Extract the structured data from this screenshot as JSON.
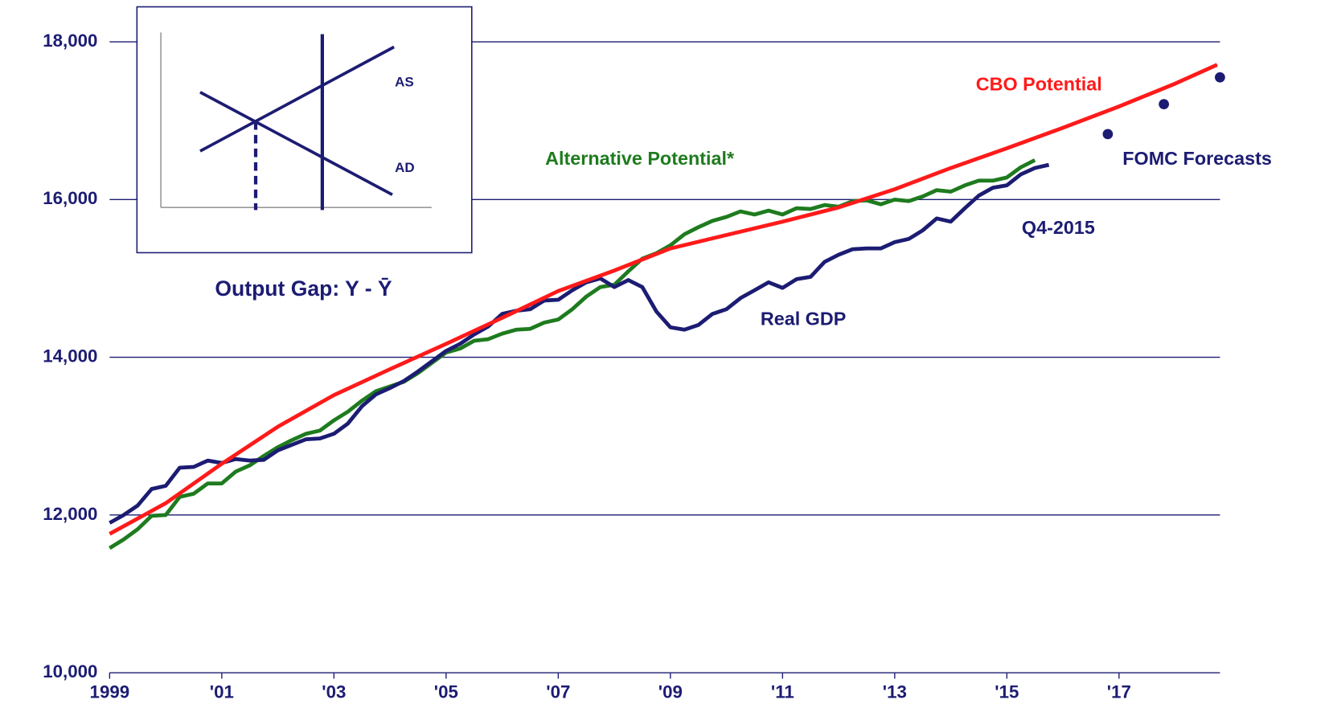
{
  "chart_data": {
    "type": "line",
    "xlim": [
      1999,
      2018.8
    ],
    "ylim": [
      10000,
      18000
    ],
    "xticks": [
      1999,
      {
        "value": 2001,
        "label": "'01"
      },
      {
        "value": 2003,
        "label": "'03"
      },
      {
        "value": 2005,
        "label": "'05"
      },
      {
        "value": 2007,
        "label": "'07"
      },
      {
        "value": 2009,
        "label": "'09"
      },
      {
        "value": 2011,
        "label": "'11"
      },
      {
        "value": 2013,
        "label": "'13"
      },
      {
        "value": 2015,
        "label": "'15"
      },
      {
        "value": 2017,
        "label": "'17"
      }
    ],
    "yticks": [
      {
        "value": 10000,
        "label": "10,000"
      },
      {
        "value": 12000,
        "label": "12,000"
      },
      {
        "value": 14000,
        "label": "14,000"
      },
      {
        "value": 16000,
        "label": "16,000"
      },
      {
        "value": 18000,
        "label": "18,000"
      }
    ],
    "grid": true,
    "annotations": [
      "Q4-2015"
    ],
    "inset": {
      "title": "Output Gap:  Y - Ȳ",
      "labels": [
        "AS",
        "AD"
      ]
    },
    "series": [
      {
        "name": "Real GDP",
        "type": "line",
        "color": "#1c1c73",
        "x": [
          1999,
          1999.25,
          1999.5,
          1999.75,
          2000,
          2000.25,
          2000.5,
          2000.75,
          2001,
          2001.25,
          2001.5,
          2001.75,
          2002,
          2002.25,
          2002.5,
          2002.75,
          2003,
          2003.25,
          2003.5,
          2003.75,
          2004,
          2004.25,
          2004.5,
          2004.75,
          2005,
          2005.25,
          2005.5,
          2005.75,
          2006,
          2006.25,
          2006.5,
          2006.75,
          2007,
          2007.25,
          2007.5,
          2007.75,
          2008,
          2008.25,
          2008.5,
          2008.75,
          2009,
          2009.25,
          2009.5,
          2009.75,
          2010,
          2010.25,
          2010.5,
          2010.75,
          2011,
          2011.25,
          2011.5,
          2011.75,
          2012,
          2012.25,
          2012.5,
          2012.75,
          2013,
          2013.25,
          2013.5,
          2013.75,
          2014,
          2014.25,
          2014.5,
          2014.75,
          2015,
          2015.25,
          2015.5,
          2015.75
        ],
        "values": [
          11900,
          12000,
          12120,
          12330,
          12370,
          12600,
          12610,
          12690,
          12660,
          12710,
          12690,
          12700,
          12820,
          12890,
          12960,
          12970,
          13030,
          13160,
          13380,
          13530,
          13610,
          13700,
          13820,
          13950,
          14080,
          14170,
          14290,
          14390,
          14550,
          14590,
          14610,
          14720,
          14730,
          14850,
          14950,
          15000,
          14890,
          14980,
          14890,
          14580,
          14380,
          14350,
          14410,
          14550,
          14610,
          14750,
          14850,
          14950,
          14880,
          14990,
          15020,
          15210,
          15300,
          15370,
          15380,
          15380,
          15460,
          15500,
          15610,
          15760,
          15720,
          15890,
          16050,
          16150,
          16180,
          16320,
          16400,
          16440
        ]
      },
      {
        "name": "Alternative Potential*",
        "type": "line",
        "color": "#1e7b1e",
        "x": [
          1999,
          1999.25,
          1999.5,
          1999.75,
          2000,
          2000.25,
          2000.5,
          2000.75,
          2001,
          2001.25,
          2001.5,
          2001.75,
          2002,
          2002.25,
          2002.5,
          2002.75,
          2003,
          2003.25,
          2003.5,
          2003.75,
          2004,
          2004.25,
          2004.5,
          2004.75,
          2005,
          2005.25,
          2005.5,
          2005.75,
          2006,
          2006.25,
          2006.5,
          2006.75,
          2007,
          2007.25,
          2007.5,
          2007.75,
          2008,
          2008.25,
          2008.5,
          2008.75,
          2009,
          2009.25,
          2009.5,
          2009.75,
          2010,
          2010.25,
          2010.5,
          2010.75,
          2011,
          2011.25,
          2011.5,
          2011.75,
          2012,
          2012.25,
          2012.5,
          2012.75,
          2013,
          2013.25,
          2013.5,
          2013.75,
          2014,
          2014.25,
          2014.5,
          2014.75,
          2015,
          2015.25,
          2015.5
        ],
        "values": [
          11580,
          11690,
          11820,
          11990,
          12000,
          12230,
          12270,
          12400,
          12400,
          12550,
          12630,
          12750,
          12860,
          12950,
          13030,
          13070,
          13200,
          13310,
          13450,
          13570,
          13630,
          13690,
          13800,
          13930,
          14060,
          14110,
          14210,
          14230,
          14300,
          14350,
          14360,
          14440,
          14480,
          14610,
          14770,
          14890,
          14920,
          15090,
          15250,
          15320,
          15420,
          15560,
          15650,
          15730,
          15780,
          15850,
          15810,
          15860,
          15810,
          15890,
          15880,
          15930,
          15910,
          15980,
          15990,
          15940,
          16000,
          15980,
          16040,
          16120,
          16100,
          16180,
          16240,
          16240,
          16280,
          16410,
          16500
        ]
      },
      {
        "name": "CBO Potential",
        "type": "line",
        "color": "#ff1a1a",
        "x": [
          1999,
          2000,
          2001,
          2002,
          2003,
          2004,
          2005,
          2006,
          2007,
          2008,
          2009,
          2010,
          2011,
          2012,
          2013,
          2014,
          2015,
          2016,
          2017,
          2018,
          2018.75
        ],
        "values": [
          11760,
          12150,
          12650,
          13120,
          13520,
          13850,
          14170,
          14500,
          14840,
          15100,
          15380,
          15550,
          15720,
          15900,
          16130,
          16400,
          16650,
          16910,
          17180,
          17470,
          17710
        ]
      },
      {
        "name": "FOMC Forecasts",
        "type": "scatter",
        "color": "#1c1c73",
        "x": [
          2016.8,
          2017.8,
          2018.8
        ],
        "values": [
          16830,
          17210,
          17550
        ]
      }
    ]
  }
}
